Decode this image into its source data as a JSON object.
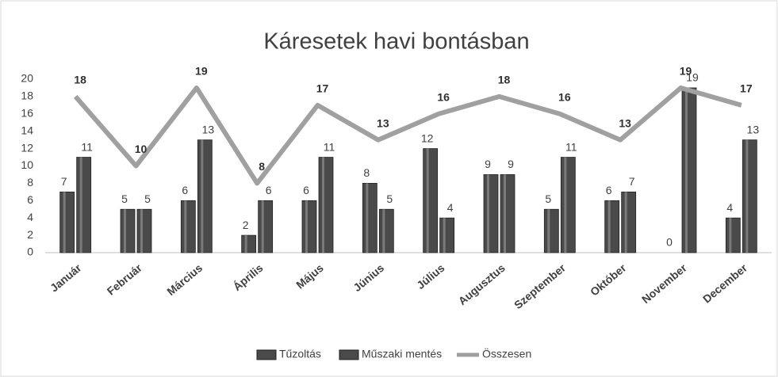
{
  "chart_data": {
    "type": "bar",
    "title": "Káresetek havi bontásban",
    "categories": [
      "Január",
      "Február",
      "Március",
      "Április",
      "Május",
      "Június",
      "Július",
      "Augusztus",
      "Szeptember",
      "Október",
      "November",
      "December"
    ],
    "series": [
      {
        "name": "Tűzoltás",
        "type": "bar",
        "color": "#4a4a4a",
        "values": [
          7,
          5,
          6,
          2,
          6,
          8,
          12,
          9,
          5,
          6,
          0,
          4
        ]
      },
      {
        "name": "Műszaki mentés",
        "type": "bar",
        "color": "#4a4a4a",
        "values": [
          11,
          5,
          13,
          6,
          11,
          5,
          4,
          9,
          11,
          7,
          19,
          13
        ]
      },
      {
        "name": "Összesen",
        "type": "line",
        "color": "#a0a0a0",
        "values": [
          18,
          10,
          19,
          8,
          17,
          13,
          16,
          18,
          16,
          13,
          19,
          17
        ]
      }
    ],
    "ylim": [
      0,
      20
    ],
    "yticks": [
      0,
      2,
      4,
      6,
      8,
      10,
      12,
      14,
      16,
      18,
      20
    ],
    "grid": false,
    "legend": "bottom"
  }
}
